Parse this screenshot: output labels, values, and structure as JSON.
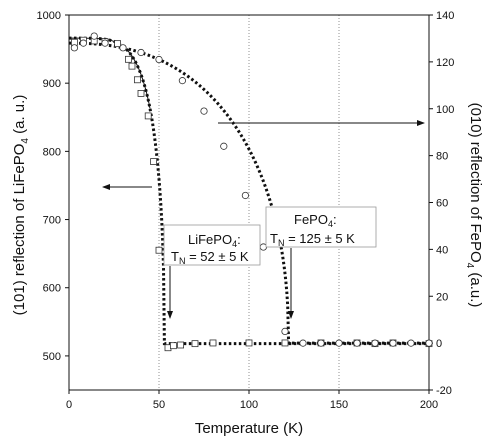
{
  "chart_data": {
    "type": "scatter",
    "title": "",
    "xlabel": "Temperature (K)",
    "ylabel_left": [
      "(101) reflection of LiFePO",
      "4",
      " (a. u.)"
    ],
    "ylabel_right": [
      "(010) reflection of FePO",
      "4",
      " (a.u.)"
    ],
    "xlim": [
      0,
      200
    ],
    "ylim_left": [
      450,
      1000
    ],
    "ylim_right": [
      -20,
      140
    ],
    "x_ticks": [
      0,
      50,
      100,
      150,
      200
    ],
    "y_ticks_left": [
      500,
      600,
      700,
      800,
      900,
      1000
    ],
    "y_ticks_right": [
      -20,
      0,
      20,
      40,
      60,
      80,
      100,
      120,
      140
    ],
    "grid": "vertical dotted at x ticks",
    "series": [
      {
        "axis": "left",
        "marker": "square",
        "x": [
          3,
          8,
          14,
          20,
          27,
          33,
          35,
          38,
          40,
          44,
          47,
          50,
          55,
          58,
          62,
          70,
          80,
          100,
          120,
          140,
          160,
          170,
          180,
          200
        ],
        "y": [
          960,
          963,
          962,
          961,
          958,
          935,
          925,
          905,
          885,
          852,
          785,
          655,
          512,
          515,
          516,
          518,
          519,
          519,
          519,
          519,
          519,
          518,
          519,
          518
        ]
      },
      {
        "axis": "right",
        "marker": "circle",
        "x": [
          3,
          8,
          14,
          20,
          30,
          40,
          50,
          63,
          75,
          86,
          98,
          108,
          120,
          130,
          140,
          150,
          160,
          170,
          180,
          190,
          200
        ],
        "y": [
          126,
          128,
          131,
          128,
          126,
          124,
          121,
          112,
          99,
          84,
          63,
          41,
          5,
          0,
          0,
          0,
          0,
          0,
          0,
          0,
          0
        ]
      }
    ],
    "annotations": [
      {
        "text_main": "LiFePO",
        "text_sub": "4",
        "text_end": ":",
        "line2_main": "T",
        "line2_sub": "N",
        "line2_end": " = 52 ± 5 K"
      },
      {
        "text_main": "FePO",
        "text_sub": "4",
        "text_end": ":",
        "line2_main": "T",
        "line2_sub": "N",
        "line2_end": " = 125 ± 5 K"
      }
    ]
  }
}
